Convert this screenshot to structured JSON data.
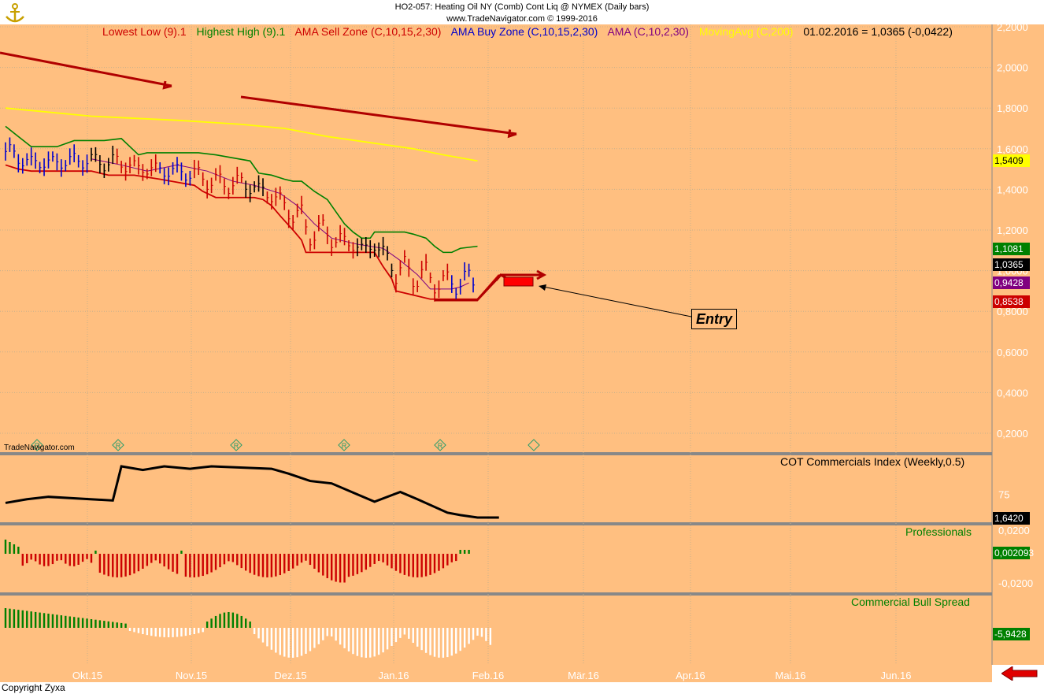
{
  "header": {
    "line1": "HO2-057:  Heating Oil NY (Comb) Cont Liq @ NYMEX  (Daily bars)",
    "line2": "www.TradeNavigator.com © 1999-2016"
  },
  "legend": {
    "lowest_low": "Lowest Low (9).1",
    "highest_high": "Highest High (9).1",
    "ama_sell": "AMA Sell Zone (C,10,15,2,30)",
    "ama_buy": "AMA Buy Zone (C,10,15,2,30)",
    "ama": "AMA (C,10,2,30)",
    "moving_avg": "MovingAvg (C,200)",
    "last_value": "01.02.2016 = 1,0365 (-0,0422)"
  },
  "annotations": {
    "entry": "Entry",
    "watermark": "TradeNavigator.com",
    "copyright": "Copyright Zyxa"
  },
  "panels": {
    "cot": {
      "label": "COT Commercials Index (Weekly,0.5)",
      "tick": "75",
      "last": "1,6420"
    },
    "professionals": {
      "label": "Professionals",
      "ticks": [
        "0,0200",
        "-0,0200"
      ],
      "last": "0,002093"
    },
    "bull_spread": {
      "label": "Commercial Bull Spread",
      "last": "-5,9428"
    }
  },
  "price_tags": {
    "ma200": "1,5409",
    "highest": "1,1081",
    "close": "1,0365",
    "ama": "0,9428",
    "lowest": "0,8538"
  },
  "colors": {
    "background": "#ffbf80",
    "lowest_low": "#cc0000",
    "highest_high": "#008000",
    "ama_sell": "#cc0000",
    "ama_buy": "#0000cc",
    "ama": "#800080",
    "moving_avg": "#ffff00",
    "trend_arrow": "#b00000"
  },
  "chart_data": {
    "type": "line",
    "title": "HO2-057:  Heating Oil NY (Comb) Cont Liq @ NYMEX  (Daily bars)",
    "y_ticks": [
      "2,2000",
      "2,0000",
      "1,8000",
      "1,6000",
      "1,4000",
      "1,2000",
      "1,0000",
      "0,8000",
      "0,6000",
      "0,4000",
      "0,2000"
    ],
    "ylim": [
      0.1,
      2.25
    ],
    "x_ticks": [
      "Okt.15",
      "Nov.15",
      "Dez.15",
      "Jan.16",
      "Feb.16",
      "Mär.16",
      "Apr.16",
      "Mai.16",
      "Jun.16"
    ],
    "grid": true,
    "series": [
      {
        "name": "Highest High (9).1",
        "x": [
          0,
          3,
          6,
          12,
          16,
          23,
          27,
          29,
          31,
          33,
          37,
          45,
          49,
          57,
          59,
          62,
          65,
          67,
          69,
          72,
          75,
          77,
          79,
          81,
          83,
          85,
          86,
          90,
          93,
          95,
          98,
          100,
          102,
          104,
          106,
          110
        ],
        "y": [
          1.71,
          1.66,
          1.61,
          1.61,
          1.64,
          1.64,
          1.65,
          1.61,
          1.57,
          1.58,
          1.58,
          1.58,
          1.57,
          1.54,
          1.48,
          1.47,
          1.45,
          1.44,
          1.44,
          1.39,
          1.35,
          1.29,
          1.23,
          1.19,
          1.16,
          1.16,
          1.19,
          1.19,
          1.19,
          1.18,
          1.16,
          1.12,
          1.09,
          1.09,
          1.11,
          1.12
        ]
      },
      {
        "name": "Lowest Low (9).1",
        "x": [
          0,
          3,
          6,
          10,
          20,
          24,
          30,
          36,
          44,
          46,
          49,
          50,
          58,
          60,
          62,
          64,
          67,
          69,
          70,
          73,
          75,
          80,
          84,
          86,
          88,
          90,
          91,
          99,
          100,
          110,
          115
        ],
        "y": [
          1.52,
          1.5,
          1.49,
          1.49,
          1.49,
          1.47,
          1.47,
          1.45,
          1.42,
          1.39,
          1.36,
          1.36,
          1.36,
          1.35,
          1.32,
          1.27,
          1.2,
          1.15,
          1.09,
          1.09,
          1.09,
          1.09,
          1.09,
          1.09,
          1.02,
          0.96,
          0.9,
          0.86,
          0.86,
          0.86,
          0.98
        ]
      },
      {
        "name": "AMA (C,10,2,30)",
        "x": [
          20,
          27,
          33,
          40,
          47,
          53,
          58,
          64,
          68,
          72,
          76,
          82,
          88,
          92,
          96,
          99,
          102,
          104,
          106,
          108
        ],
        "y": [
          1.55,
          1.52,
          1.49,
          1.52,
          1.49,
          1.44,
          1.42,
          1.38,
          1.32,
          1.23,
          1.16,
          1.13,
          1.11,
          1.05,
          0.98,
          0.91,
          0.91,
          0.91,
          0.92,
          0.94
        ]
      },
      {
        "name": "MovingAvg (C,200)",
        "x": [
          0,
          20,
          40,
          55,
          65,
          75,
          85,
          95,
          102,
          110
        ],
        "y": [
          1.8,
          1.76,
          1.74,
          1.72,
          1.7,
          1.66,
          1.63,
          1.6,
          1.57,
          1.54
        ]
      },
      {
        "name": "COT Commercials Index (Weekly,0.5)",
        "x": [
          0,
          5,
          10,
          25,
          27,
          32,
          37,
          43,
          48,
          62,
          66,
          71,
          76,
          82,
          86,
          92,
          96,
          103,
          106,
          110,
          115
        ],
        "y": [
          68,
          71,
          73,
          70,
          98,
          95,
          98,
          96,
          98,
          96,
          92,
          86,
          84,
          75,
          69,
          77,
          71,
          60,
          58,
          56,
          56
        ]
      }
    ]
  }
}
